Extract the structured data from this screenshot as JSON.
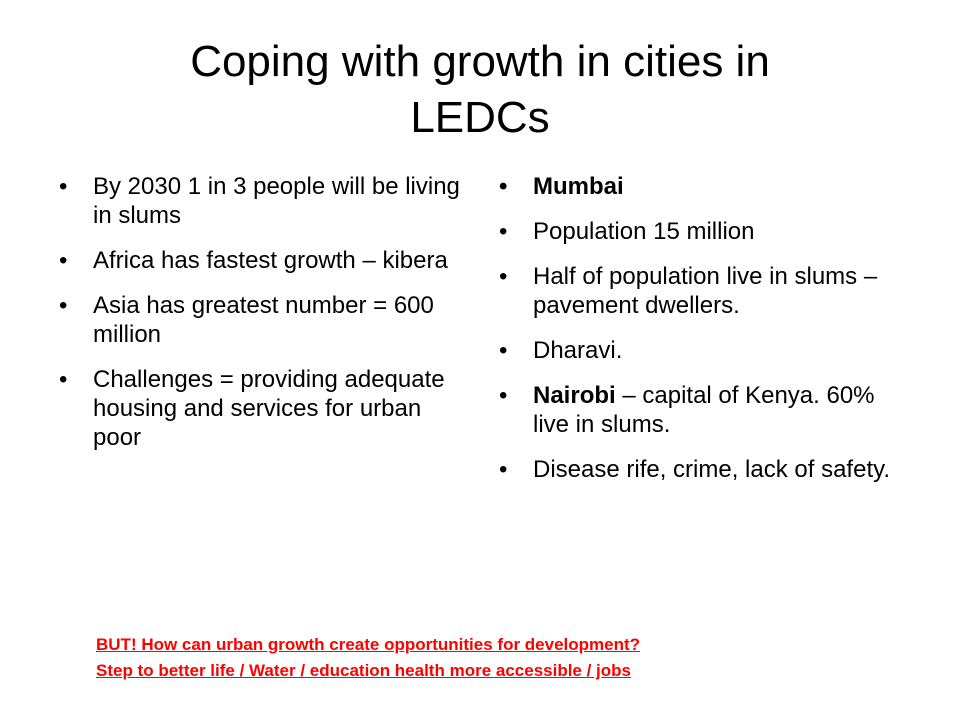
{
  "title": {
    "line1": "Coping with growth in cities in",
    "line2": "LEDCs"
  },
  "left_bullets": [
    "By 2030 1 in 3 people will be living in slums",
    "Africa has fastest growth – kibera",
    "Asia has greatest number = 600 million",
    "Challenges = providing adequate housing and services for urban poor"
  ],
  "right_bullets": {
    "mumbai": "Mumbai",
    "population": "Population 15 million",
    "half_slums": "Half of population live in slums – pavement dwellers.",
    "dharavi": "Dharavi.",
    "nairobi_bold": "Nairobi",
    "nairobi_rest": " – capital of Kenya. 60% live in slums.",
    "disease": "Disease rife, crime, lack of safety."
  },
  "footer": {
    "line1": "BUT! How can urban growth create opportunities for development?",
    "line2": "Step to better life / Water / education health more accessible / jobs"
  },
  "colors": {
    "text": "#000000",
    "footer": "#ff0000",
    "background": "#ffffff"
  }
}
